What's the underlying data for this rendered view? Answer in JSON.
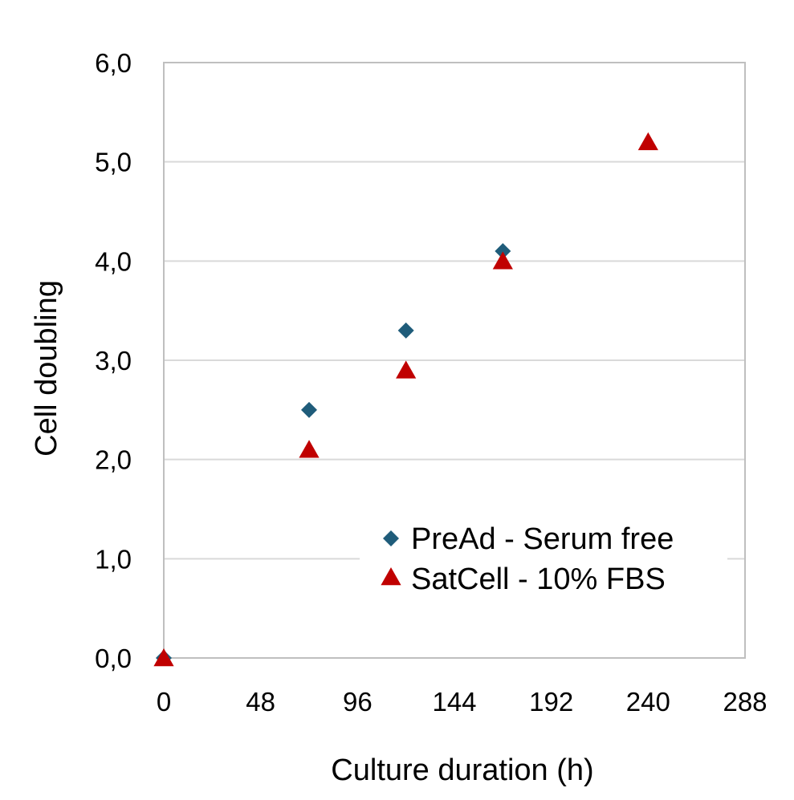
{
  "chart_data": {
    "type": "scatter",
    "xlabel": "Culture duration (h)",
    "ylabel": "Cell doubling",
    "xlim": [
      0,
      288
    ],
    "ylim": [
      0,
      6
    ],
    "x_ticks": [
      "0",
      "48",
      "96",
      "144",
      "192",
      "240",
      "288"
    ],
    "x_tick_values": [
      0,
      48,
      96,
      144,
      192,
      240,
      288
    ],
    "y_ticks": [
      "0,0",
      "1,0",
      "2,0",
      "3,0",
      "4,0",
      "5,0",
      "6,0"
    ],
    "y_tick_values": [
      0,
      1,
      2,
      3,
      4,
      5,
      6
    ],
    "grid": "horizontal",
    "legend_position": "bottom-right",
    "series": [
      {
        "name": "PreAd - Serum free",
        "marker": "diamond",
        "color": "#1F5C7A",
        "points": [
          {
            "x": 0,
            "y": 0.0
          },
          {
            "x": 72,
            "y": 2.5
          },
          {
            "x": 120,
            "y": 3.3
          },
          {
            "x": 168,
            "y": 4.1
          }
        ]
      },
      {
        "name": "SatCell - 10% FBS",
        "marker": "triangle",
        "color": "#C00000",
        "points": [
          {
            "x": 0,
            "y": 0.0
          },
          {
            "x": 72,
            "y": 2.1
          },
          {
            "x": 120,
            "y": 2.9
          },
          {
            "x": 168,
            "y": 4.0
          },
          {
            "x": 240,
            "y": 5.2
          }
        ]
      }
    ]
  }
}
